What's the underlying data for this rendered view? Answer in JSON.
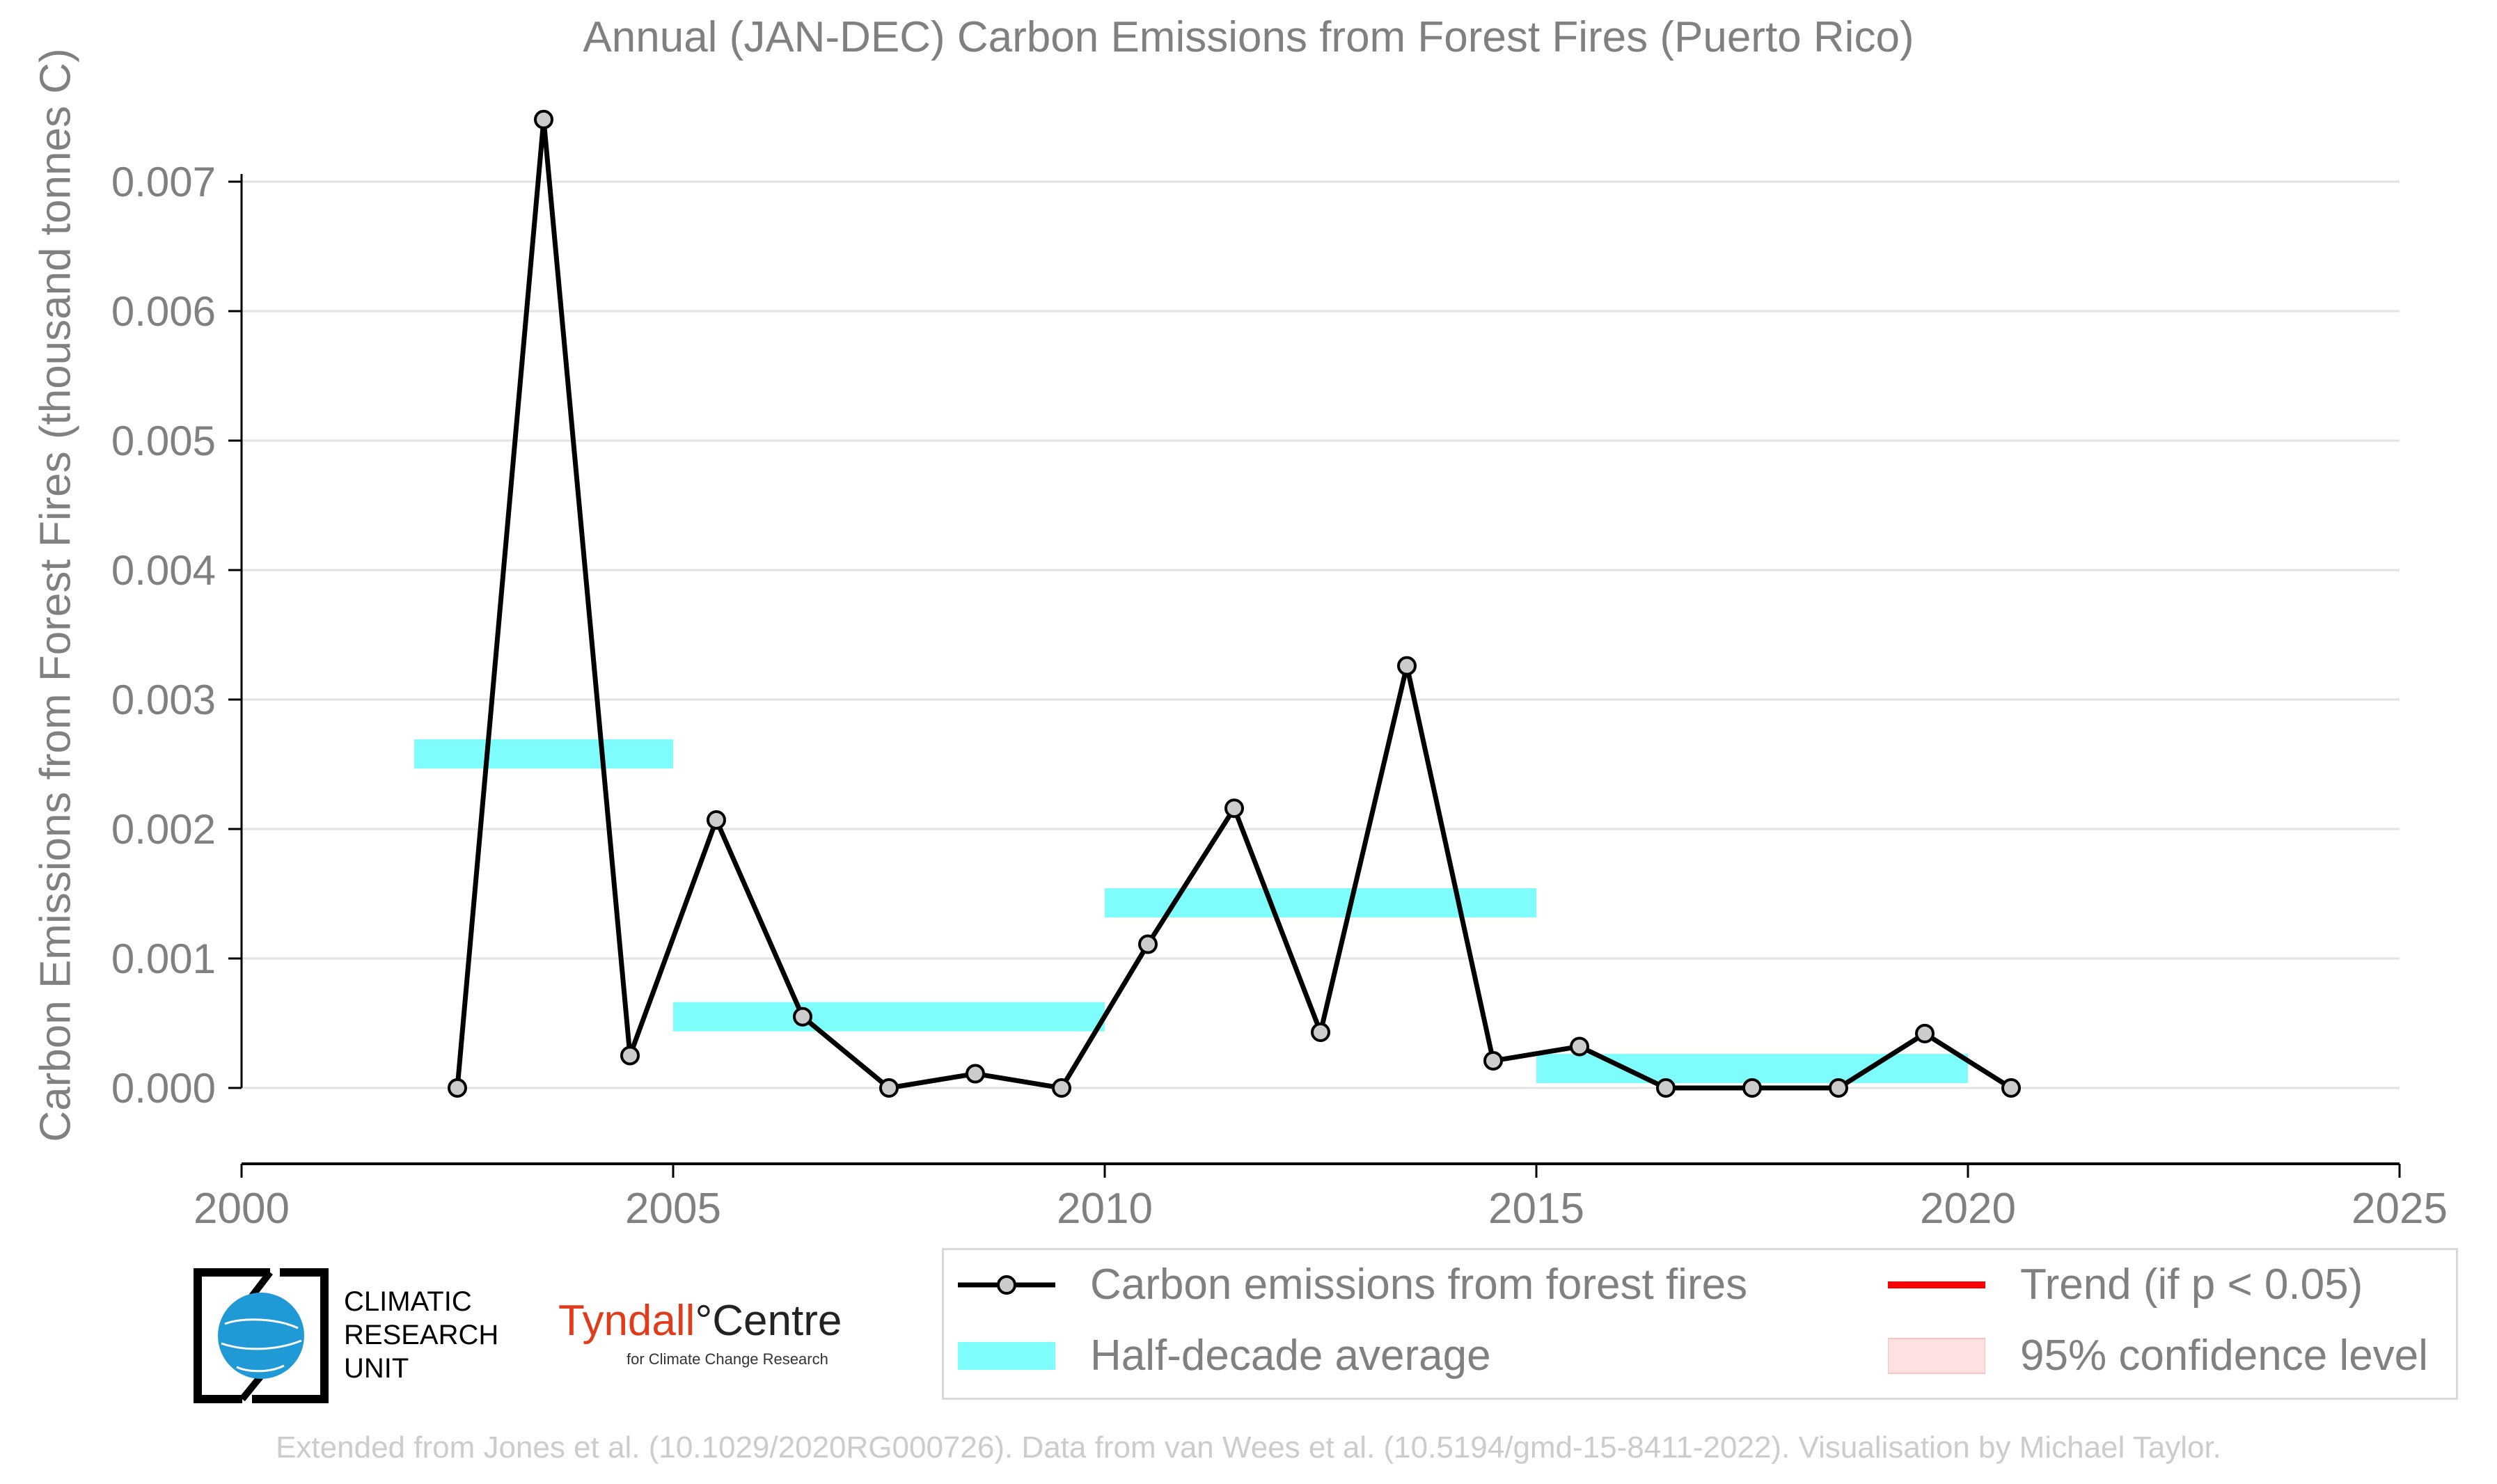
{
  "chart_data": {
    "type": "line",
    "title": "Annual (JAN-DEC) Carbon Emissions from Forest Fires (Puerto Rico)",
    "ylabel": "Carbon Emissions from Forest Fires (thousand tonnes C)",
    "xlabel": "",
    "xlim": [
      2000,
      2025
    ],
    "ylim": [
      -0.0006,
      0.0076
    ],
    "x_ticks": [
      "2000",
      "2005",
      "2010",
      "2015",
      "2020",
      "2025"
    ],
    "y_ticks": [
      "0.000",
      "0.001",
      "0.002",
      "0.003",
      "0.004",
      "0.005",
      "0.006",
      "0.007"
    ],
    "grid": "horizontal",
    "series": [
      {
        "name": "Carbon emissions from forest fires",
        "color": "#000000",
        "marker_color": "#cccccc",
        "x": [
          2002.5,
          2003.5,
          2004.5,
          2005.5,
          2006.5,
          2007.5,
          2008.5,
          2009.5,
          2010.5,
          2011.5,
          2012.5,
          2013.5,
          2014.5,
          2015.5,
          2016.5,
          2017.5,
          2018.5,
          2019.5,
          2020.5
        ],
        "values": [
          0.0,
          0.00748,
          0.00025,
          0.00207,
          0.00055,
          0.0,
          0.00011,
          0.0,
          0.00111,
          0.00216,
          0.00043,
          0.00326,
          0.00021,
          0.00032,
          0.0,
          0.0,
          0.0,
          0.00042,
          0.0
        ]
      }
    ],
    "half_decade_average": {
      "name": "Half-decade average",
      "color": "#7ffcfc",
      "segments": [
        {
          "start": 2002,
          "end": 2005,
          "value": 0.00258
        },
        {
          "start": 2005,
          "end": 2010,
          "value": 0.00055
        },
        {
          "start": 2010,
          "end": 2015,
          "value": 0.00143
        },
        {
          "start": 2015,
          "end": 2020,
          "value": 0.00015
        }
      ]
    },
    "legend": {
      "placement": "bottom",
      "entries": [
        {
          "label": "Carbon emissions from forest fires",
          "color": "#000000"
        },
        {
          "label": "Trend (if p < 0.05)",
          "color": "#ff0000"
        },
        {
          "label": "Half-decade average",
          "color": "#7ffcfc"
        },
        {
          "label": "95% confidence level",
          "color": "#fde0e0"
        }
      ]
    }
  },
  "logos": {
    "cru_lines": [
      "CLIMATIC",
      "RESEARCH",
      "UNIT"
    ],
    "tyndall_name": "Tyndall",
    "tyndall_centre": "°Centre",
    "tyndall_sub": "for Climate Change Research"
  },
  "credit": "Extended from Jones et al. (10.1029/2020RG000726). Data from van Wees et al. (10.5194/gmd-15-8411-2022). Visualisation by Michael Taylor."
}
